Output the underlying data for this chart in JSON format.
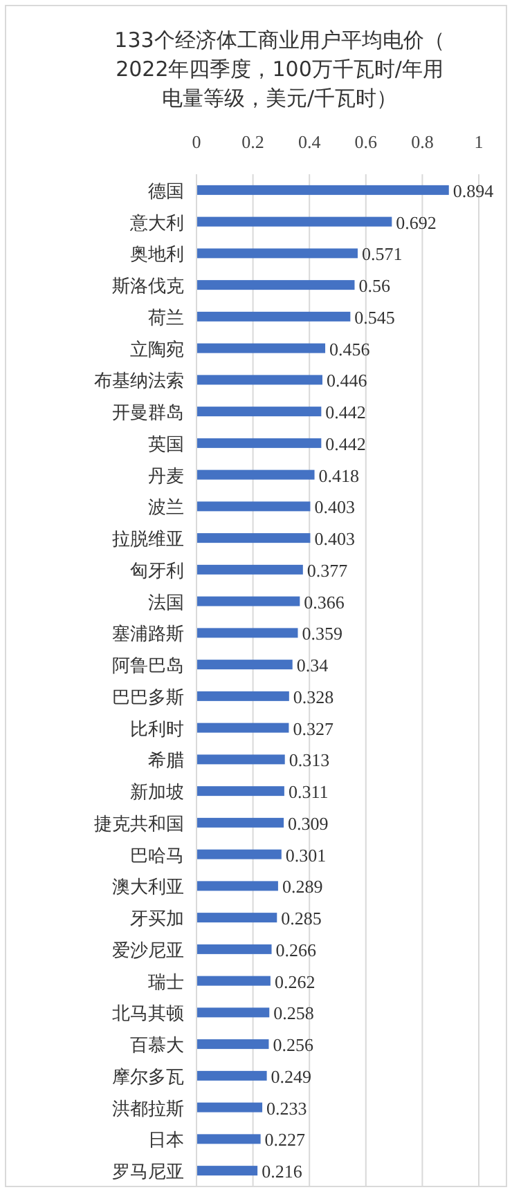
{
  "chart_data": {
    "type": "bar",
    "orientation": "horizontal",
    "title": "133个经济体工商业用户平均电价（2022年四季度，100万千瓦时/年用电量等级，美元/千瓦时）",
    "categories": [
      "德国",
      "意大利",
      "奥地利",
      "斯洛伐克",
      "荷兰",
      "立陶宛",
      "布基纳法索",
      "开曼群岛",
      "英国",
      "丹麦",
      "波兰",
      "拉脱维亚",
      "匈牙利",
      "法国",
      "塞浦路斯",
      "阿鲁巴岛",
      "巴巴多斯",
      "比利时",
      "希腊",
      "新加坡",
      "捷克共和国",
      "巴哈马",
      "澳大利亚",
      "牙买加",
      "爱沙尼亚",
      "瑞士",
      "北马其顿",
      "百慕大",
      "摩尔多瓦",
      "洪都拉斯",
      "日本",
      "罗马尼亚"
    ],
    "values": [
      0.894,
      0.692,
      0.571,
      0.56,
      0.545,
      0.456,
      0.446,
      0.442,
      0.442,
      0.418,
      0.403,
      0.403,
      0.377,
      0.366,
      0.359,
      0.34,
      0.328,
      0.327,
      0.313,
      0.311,
      0.309,
      0.301,
      0.289,
      0.285,
      0.266,
      0.262,
      0.258,
      0.256,
      0.249,
      0.233,
      0.227,
      0.216
    ],
    "color": "#4472c4",
    "xlim": [
      0,
      1
    ],
    "xticks": [
      0,
      0.2,
      0.4,
      0.6,
      0.8,
      1
    ],
    "grid": "x",
    "data_labels": true
  }
}
